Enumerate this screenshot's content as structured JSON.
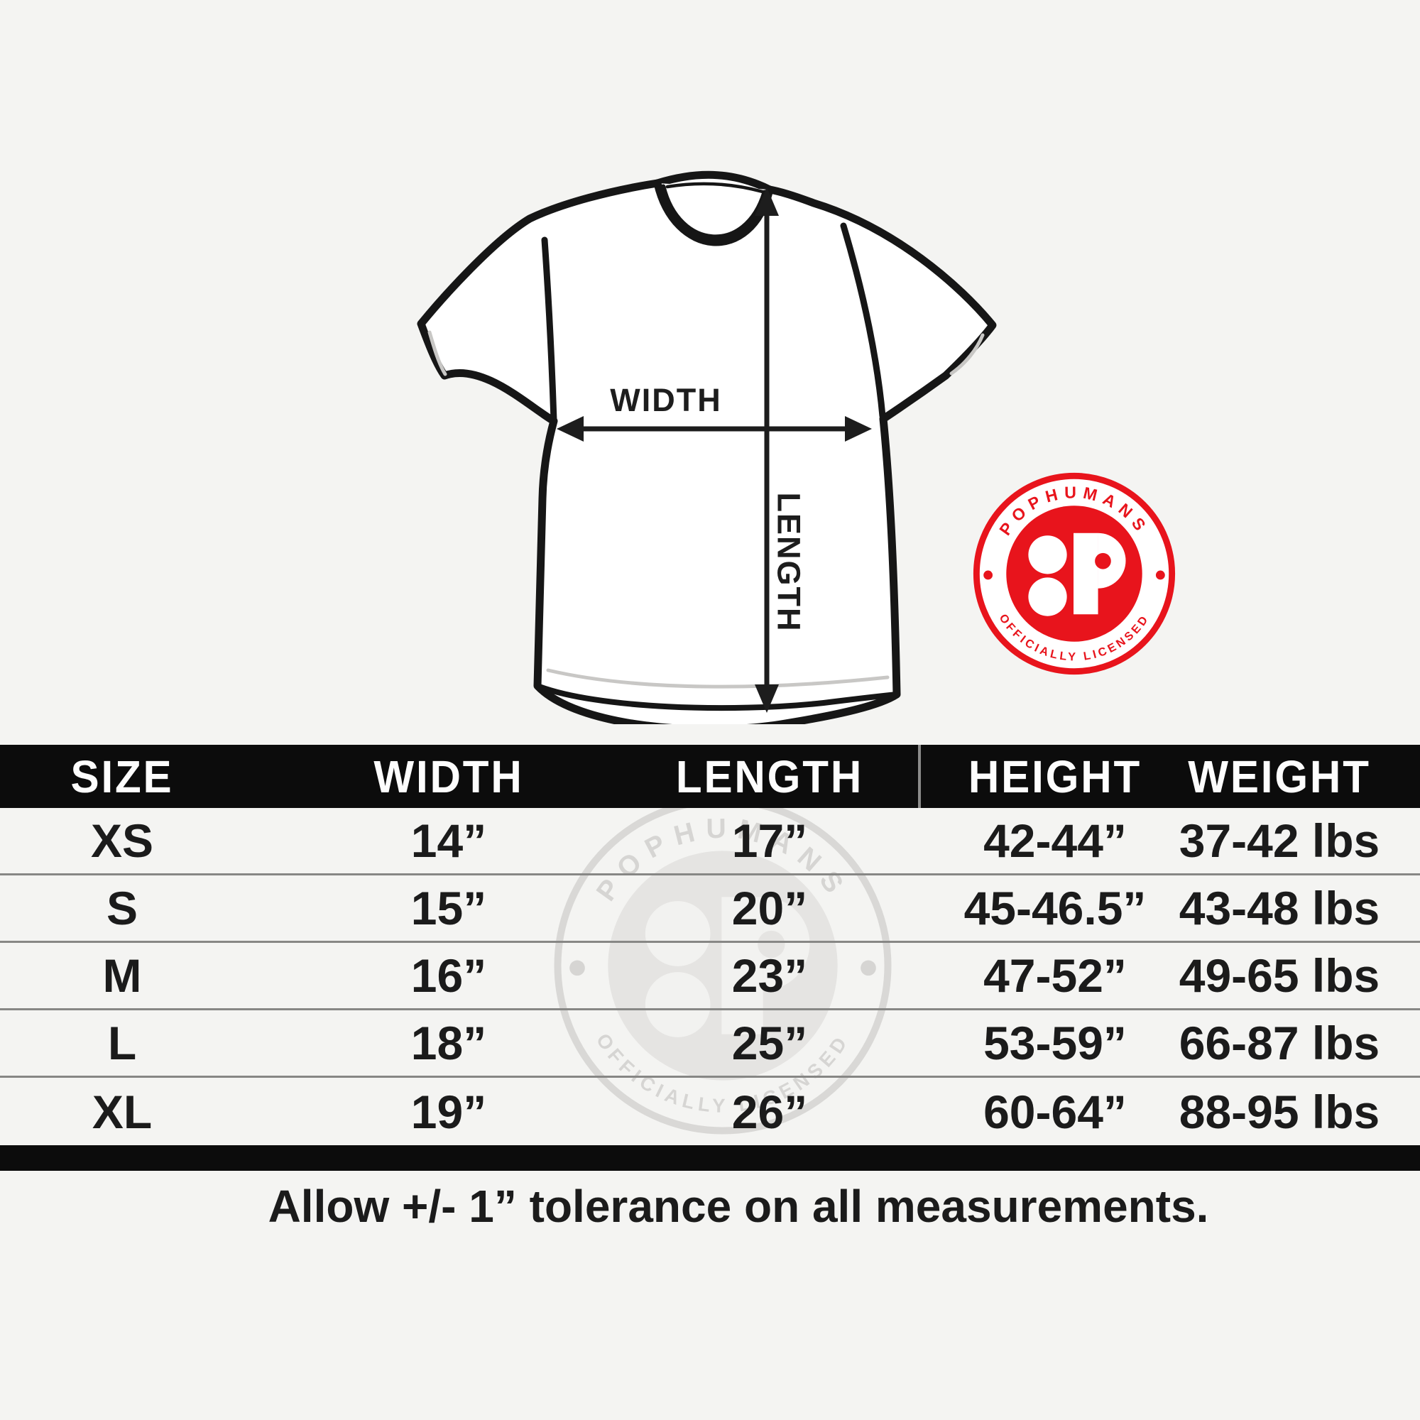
{
  "diagram": {
    "width_label": "WIDTH",
    "length_label": "LENGTH"
  },
  "badge": {
    "brand": "POPHUMANS",
    "tagline": "OFFICIALLY LICENSED",
    "monogram": ":P"
  },
  "table": {
    "headers": [
      "SIZE",
      "WIDTH",
      "LENGTH",
      "HEIGHT",
      "WEIGHT"
    ],
    "rows": [
      [
        "XS",
        "14”",
        "17”",
        "42-44”",
        "37-42 lbs"
      ],
      [
        "S",
        "15”",
        "20”",
        "45-46.5”",
        "43-48 lbs"
      ],
      [
        "M",
        "16”",
        "23”",
        "47-52”",
        "49-65 lbs"
      ],
      [
        "L",
        "18”",
        "25”",
        "53-59”",
        "66-87 lbs"
      ],
      [
        "XL",
        "19”",
        "26”",
        "60-64”",
        "88-95 lbs"
      ]
    ]
  },
  "footer": {
    "note": "Allow +/- 1” tolerance on all measurements."
  },
  "colors": {
    "accent_red": "#e8141c",
    "bar_black": "#0c0c0c",
    "background": "#f4f4f2"
  }
}
